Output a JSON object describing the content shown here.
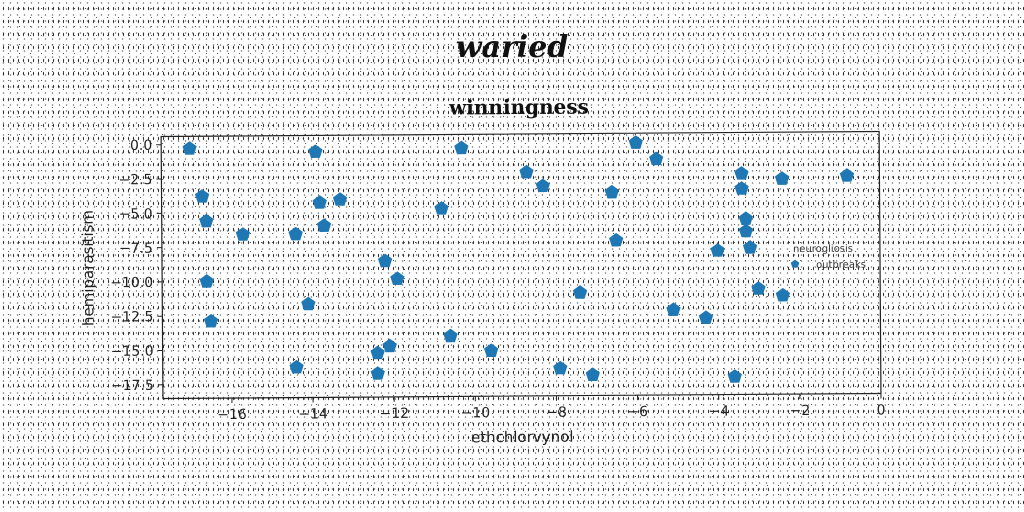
{
  "header": {
    "title": "waried"
  },
  "chart_data": {
    "type": "scatter",
    "title": "winningness",
    "xlabel": "ethchlorvynol",
    "ylabel": "hemiparasitism",
    "xlim": [
      -17.7,
      0
    ],
    "ylim": [
      -18.5,
      0.6
    ],
    "xticks": [
      -16,
      -14,
      -12,
      -10,
      -8,
      -6,
      -4,
      -2,
      0
    ],
    "xtick_labels": [
      "−16",
      "−14",
      "−12",
      "−10",
      "−8",
      "−6",
      "−4",
      "−2",
      "0"
    ],
    "yticks": [
      0,
      -2.5,
      -5,
      -7.5,
      -10,
      -12.5,
      -15,
      -17.5
    ],
    "ytick_labels": [
      "0.0",
      "−2.5",
      "−5.0",
      "−7.5",
      "−10.0",
      "−12.5",
      "−15.0",
      "−17.5"
    ],
    "grid": false,
    "legend": {
      "position": "right",
      "entries": [
        "neurogliosis",
        "outbreaks"
      ]
    },
    "marker": "pentagon",
    "color": "#1f77b4",
    "series": [
      {
        "name": "outbreaks",
        "x": [
          -17.0,
          -16.7,
          -16.6,
          -16.6,
          -16.5,
          -15.7,
          -14.4,
          -14.4,
          -14.1,
          -13.9,
          -13.8,
          -13.7,
          -13.3,
          -12.4,
          -12.4,
          -12.2,
          -12.1,
          -11.9,
          -10.8,
          -10.6,
          -10.3,
          -9.6,
          -8.7,
          -8.3,
          -7.9,
          -7.4,
          -7.1,
          -6.6,
          -6.5,
          -6.0,
          -5.5,
          -5.1,
          -4.3,
          -4.0,
          -3.6,
          -3.4,
          -3.4,
          -3.3,
          -3.3,
          -3.2,
          -3.0,
          -2.4,
          -2.4,
          -0.8
        ],
        "y": [
          -0.3,
          -3.8,
          -5.6,
          -10.0,
          -12.9,
          -6.6,
          -6.6,
          -16.3,
          -11.7,
          -0.6,
          -4.3,
          -6.0,
          -4.1,
          -15.3,
          -16.8,
          -8.6,
          -14.8,
          -9.9,
          -4.8,
          -14.1,
          -0.4,
          -15.2,
          -2.2,
          -3.2,
          -16.5,
          -11.0,
          -17.0,
          -3.7,
          -7.2,
          -0.1,
          -1.3,
          -12.3,
          -12.9,
          -8.0,
          -17.2,
          -2.4,
          -3.5,
          -6.6,
          -5.7,
          -7.8,
          -10.8,
          -11.3,
          -2.8,
          -2.6
        ]
      }
    ]
  }
}
